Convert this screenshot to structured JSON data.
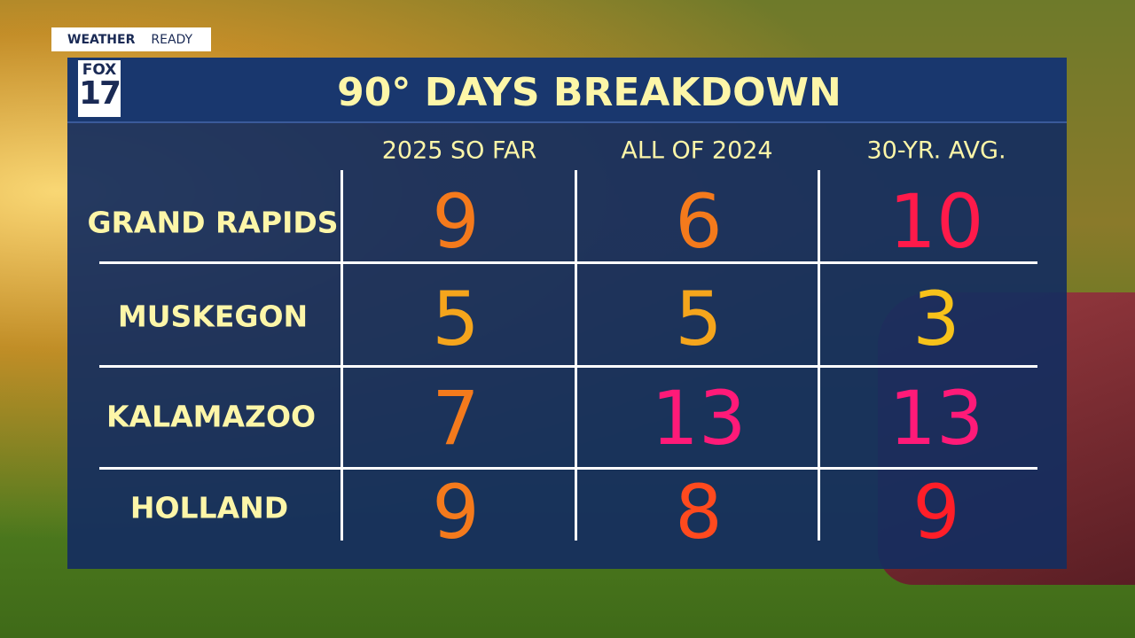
{
  "badge": {
    "left": "WEATHER",
    "right": "READY"
  },
  "logo": {
    "top": "FOX",
    "bottom": "17"
  },
  "title": "90° DAYS BREAKDOWN",
  "table": {
    "columns": [
      "2025 SO FAR",
      "ALL OF 2024",
      "30-YR. AVG."
    ],
    "rows": [
      {
        "label": "GRAND RAPIDS",
        "values": [
          9,
          6,
          10
        ]
      },
      {
        "label": "MUSKEGON",
        "values": [
          5,
          5,
          3
        ]
      },
      {
        "label": "KALAMAZOO",
        "values": [
          7,
          13,
          13
        ]
      },
      {
        "label": "HOLLAND",
        "values": [
          9,
          8,
          9
        ]
      }
    ]
  }
}
